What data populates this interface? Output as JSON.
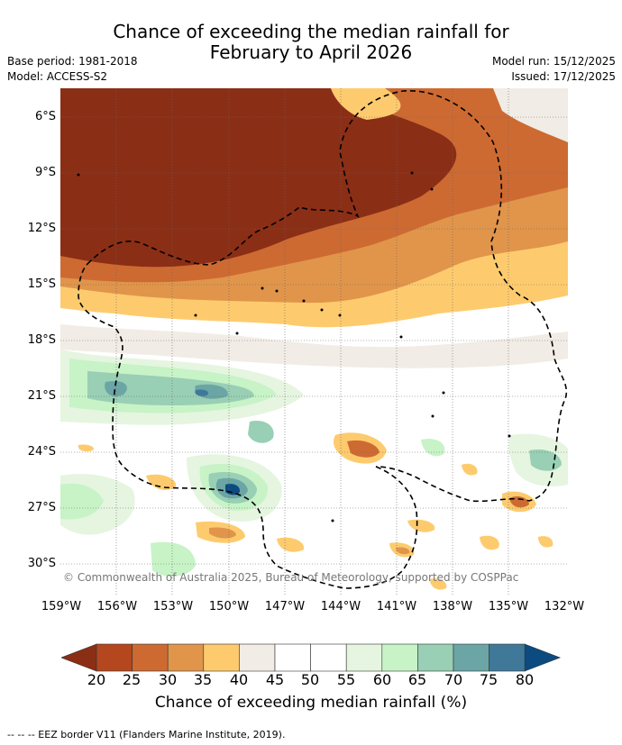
{
  "title_line1": "Chance of exceeding the median rainfall for",
  "title_line2": "February to April 2026",
  "base_period": "Base period: 1981-2018",
  "model": "Model: ACCESS-S2",
  "model_run": "Model run: 15/12/2025",
  "issued": "Issued: 17/12/2025",
  "lat_labels": [
    "6°S",
    "9°S",
    "12°S",
    "15°S",
    "18°S",
    "21°S",
    "24°S",
    "27°S",
    "30°S"
  ],
  "lon_labels": [
    "159°W",
    "156°W",
    "153°W",
    "150°W",
    "147°W",
    "144°W",
    "141°W",
    "138°W",
    "135°W",
    "132°W"
  ],
  "colorbar": {
    "ticks": [
      "20",
      "25",
      "30",
      "35",
      "40",
      "45",
      "50",
      "55",
      "60",
      "65",
      "70",
      "75",
      "80"
    ],
    "colors": [
      "#8b2e16",
      "#b4471e",
      "#cd6a32",
      "#e0954b",
      "#fdcb6e",
      "#f1ece5",
      "#ffffff",
      "#ffffff",
      "#e5f5e0",
      "#c7f3c7",
      "#99cfb4",
      "#6ba5a5",
      "#3f7899",
      "#0c4b80"
    ],
    "label": "Chance of exceeding median rainfall (%)"
  },
  "copyright": "© Commonwealth of Australia 2025, Bureau of Meteorology, supported by COSPPac",
  "footer": "--  --  -- EEZ border V11 (Flanders Marine Institute, 2019)."
}
